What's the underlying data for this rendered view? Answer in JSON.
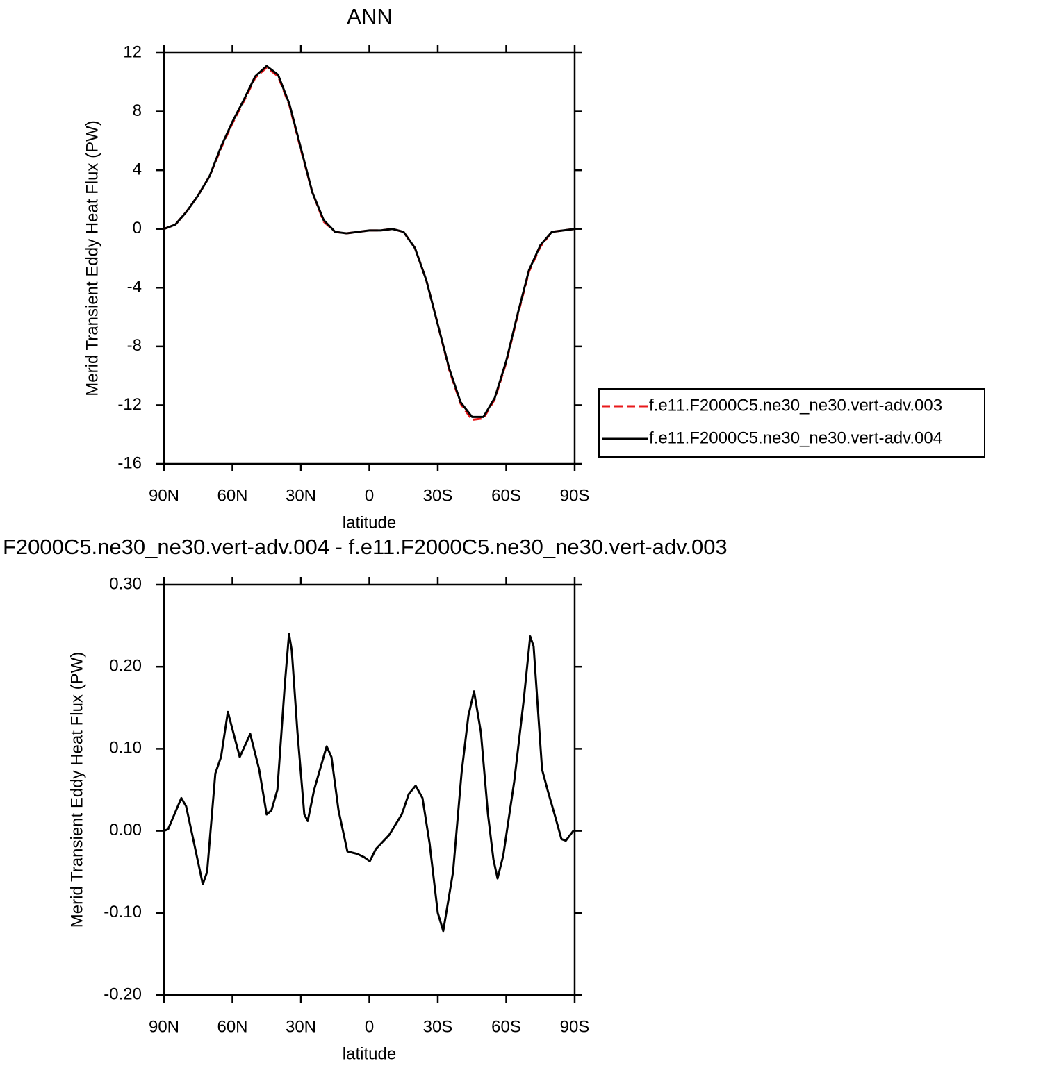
{
  "chart_data": [
    {
      "type": "line",
      "title": "ANN",
      "xlabel": "latitude",
      "ylabel": "Merid Transient Eddy Heat Flux (PW)",
      "x": [
        90,
        85,
        80,
        75,
        70,
        65,
        60,
        55,
        50,
        45,
        40,
        35,
        30,
        25,
        20,
        15,
        10,
        5,
        0,
        -5,
        -10,
        -15,
        -20,
        -25,
        -30,
        -35,
        -40,
        -45,
        -50,
        -55,
        -60,
        -65,
        -70,
        -75,
        -80,
        -85,
        -90
      ],
      "series": [
        {
          "name": "f.e11.F2000C5.ne30_ne30.vert-adv.003",
          "color": "#e8191b",
          "dash": true,
          "values": [
            0,
            0.3,
            1.2,
            2.3,
            3.6,
            5.5,
            7.2,
            8.7,
            10.3,
            11.0,
            10.4,
            8.4,
            5.4,
            2.5,
            0.5,
            -0.2,
            -0.3,
            -0.2,
            -0.1,
            -0.1,
            0,
            -0.2,
            -1.3,
            -3.5,
            -6.5,
            -9.6,
            -11.9,
            -13.0,
            -12.9,
            -11.6,
            -9.1,
            -5.9,
            -2.9,
            -1.2,
            -0.2,
            -0.1,
            0
          ]
        },
        {
          "name": "f.e11.F2000C5.ne30_ne30.vert-adv.004",
          "color": "#000000",
          "dash": false,
          "values": [
            0,
            0.3,
            1.2,
            2.3,
            3.6,
            5.6,
            7.3,
            8.8,
            10.4,
            11.1,
            10.5,
            8.5,
            5.5,
            2.5,
            0.6,
            -0.2,
            -0.3,
            -0.2,
            -0.1,
            -0.1,
            0,
            -0.2,
            -1.3,
            -3.5,
            -6.5,
            -9.5,
            -11.8,
            -12.8,
            -12.8,
            -11.5,
            -9.0,
            -5.8,
            -2.8,
            -1.1,
            -0.2,
            -0.1,
            0
          ]
        }
      ],
      "xlim": [
        90,
        -90
      ],
      "xticks": [
        {
          "value": 90,
          "label": "90N"
        },
        {
          "value": 60,
          "label": "60N"
        },
        {
          "value": 30,
          "label": "30N"
        },
        0,
        {
          "value": -30,
          "label": "30S"
        },
        {
          "value": -60,
          "label": "60S"
        },
        {
          "value": -90,
          "label": "90S"
        }
      ],
      "ylim": [
        -16,
        12
      ],
      "yticks": [
        12,
        8,
        4,
        0,
        -4,
        -8,
        -12,
        -16
      ],
      "legend": "right"
    },
    {
      "type": "line",
      "title": "F2000C5.ne30_ne30.vert-adv.004 - f.e11.F2000C5.ne30_ne30.vert-adv.003",
      "xlabel": "latitude",
      "ylabel": "Merid Transient Eddy Heat Flux (PW)",
      "x": [
        90,
        88.2,
        82.4,
        80.3,
        77.2,
        73,
        71.1,
        67.5,
        65,
        62,
        56.8,
        52.2,
        48.3,
        45,
        42.9,
        40.3,
        37,
        35.2,
        34,
        31.5,
        28.5,
        27,
        24.2,
        18.7,
        16.6,
        13.5,
        9.6,
        5.3,
        2.3,
        -0.2,
        -2.9,
        -8.7,
        -14.2,
        -17.3,
        -20.3,
        -23.3,
        -26.4,
        -30,
        -32.4,
        -36.7,
        -40.4,
        -43.4,
        -45.9,
        -48.9,
        -52,
        -54.4,
        -56.2,
        -58.7,
        -63.5,
        -67.7,
        -70.5,
        -72,
        -75.7,
        -78.1,
        -81.2,
        -84.2,
        -86.1,
        -89.4,
        -90
      ],
      "color": "#000000",
      "values": [
        0,
        0.002,
        0.04,
        0.03,
        -0.01,
        -0.065,
        -0.05,
        0.07,
        0.09,
        0.145,
        0.09,
        0.118,
        0.075,
        0.02,
        0.025,
        0.05,
        0.18,
        0.24,
        0.22,
        0.12,
        0.02,
        0.012,
        0.05,
        0.103,
        0.09,
        0.025,
        -0.025,
        -0.028,
        -0.032,
        -0.037,
        -0.022,
        -0.005,
        0.02,
        0.045,
        0.055,
        0.04,
        -0.015,
        -0.1,
        -0.122,
        -0.05,
        0.07,
        0.14,
        0.17,
        0.12,
        0.02,
        -0.035,
        -0.058,
        -0.03,
        0.06,
        0.16,
        0.237,
        0.225,
        0.075,
        0.05,
        0.02,
        -0.01,
        -0.012,
        0,
        0
      ],
      "xlim": [
        90,
        -90
      ],
      "xticks": [
        {
          "value": 90,
          "label": "90N"
        },
        {
          "value": 60,
          "label": "60N"
        },
        {
          "value": 30,
          "label": "30N"
        },
        0,
        {
          "value": -30,
          "label": "30S"
        },
        {
          "value": -60,
          "label": "60S"
        },
        {
          "value": -90,
          "label": "90S"
        }
      ],
      "ylim": [
        -0.2,
        0.3
      ],
      "yticks": [
        {
          "value": 0.3,
          "label": "0.30"
        },
        {
          "value": 0.2,
          "label": "0.20"
        },
        {
          "value": 0.1,
          "label": "0.10"
        },
        {
          "value": 0,
          "label": "0.00"
        },
        {
          "value": -0.1,
          "label": "-0.10"
        },
        {
          "value": -0.2,
          "label": "-0.20"
        }
      ]
    }
  ]
}
